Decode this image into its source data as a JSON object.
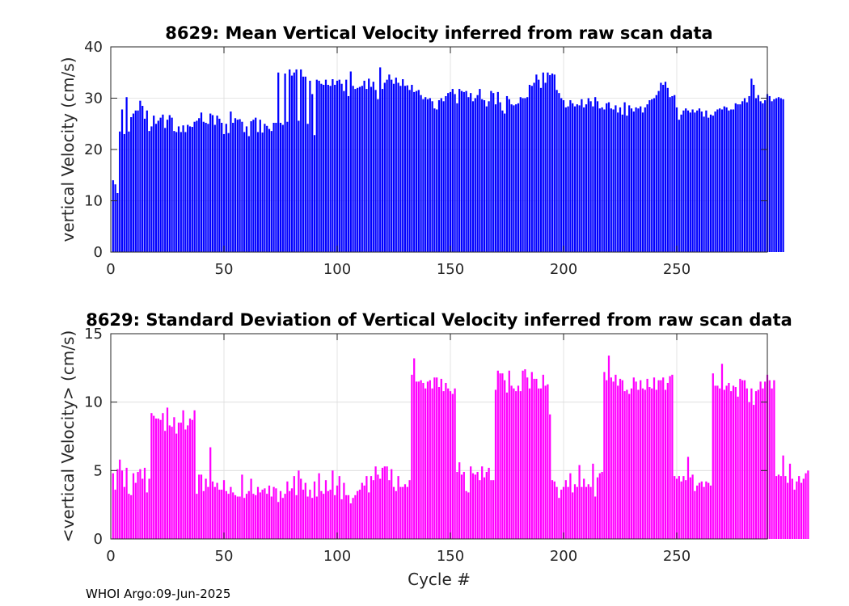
{
  "footer": {
    "credit": "WHOI Argo:09-Jun-2025"
  },
  "colors": {
    "mean_bars": "#0000ff",
    "std_bars": "#ff00ff",
    "grid": "#dcdcdc",
    "axis": "#262626"
  },
  "chart_data": [
    {
      "type": "bar",
      "title": "8629: Mean Vertical Velocity inferred from raw scan data",
      "xlabel": "",
      "ylabel": "vertical Velocity (cm/s)",
      "xlim": [
        0,
        290
      ],
      "ylim": [
        0,
        40
      ],
      "xticks": [
        0,
        50,
        100,
        150,
        200,
        250
      ],
      "yticks": [
        0,
        10,
        20,
        30,
        40
      ],
      "grid": true,
      "x_start": 1,
      "series": [
        {
          "name": "mean vertical velocity",
          "color": "#0000ff",
          "values": [
            14,
            13.2,
            11.5,
            23.5,
            27.8,
            23,
            30.2,
            23.5,
            26.3,
            27,
            27.6,
            27.6,
            29.5,
            28.5,
            26,
            27.6,
            23.6,
            24.5,
            26.6,
            25,
            25.6,
            26.2,
            26.8,
            24.2,
            25.8,
            26.7,
            26.2,
            23.6,
            23.4,
            24.5,
            23.4,
            24.7,
            23.4,
            24.8,
            24.5,
            24.4,
            25.4,
            25.6,
            26.1,
            27.2,
            25.4,
            25.2,
            25.0,
            27.0,
            26.7,
            24.8,
            26.6,
            26.0,
            25.2,
            23.0,
            25.0,
            23.2,
            27.4,
            25.2,
            26.1,
            25.8,
            25.9,
            25.4,
            23.4,
            24.5,
            22.6,
            25.5,
            25.8,
            26.2,
            23.4,
            25.8,
            23.3,
            25.0,
            24.6,
            24.0,
            23.6,
            25.2,
            25.2,
            35.0,
            25.2,
            24.8,
            34.8,
            25.4,
            35.6,
            34.4,
            35.0,
            35.6,
            25.6,
            35.6,
            34.2,
            34.2,
            25.0,
            33.4,
            30.8,
            22.8,
            33.6,
            33.4,
            32.8,
            32.6,
            33.6,
            32.6,
            32.4,
            33.7,
            32.6,
            33.4,
            33.6,
            32.8,
            31.4,
            33.6,
            30.4,
            35.2,
            32.4,
            31.8,
            32.0,
            32.2,
            32.4,
            33.4,
            31.8,
            33.8,
            32.2,
            33.2,
            31.6,
            29.8,
            36.0,
            31.8,
            33.0,
            33.6,
            34.6,
            33.6,
            32.8,
            34.0,
            33.0,
            32.4,
            33.7,
            32.4,
            32.5,
            31.6,
            32.6,
            31.2,
            31.4,
            31.6,
            30.6,
            29.8,
            30.2,
            29.8,
            30.0,
            29.4,
            28.0,
            27.8,
            29.6,
            30.0,
            29.4,
            30.4,
            31.0,
            31.2,
            31.8,
            30.8,
            29.0,
            31.8,
            31.4,
            31.2,
            31.4,
            30.2,
            31.0,
            29.4,
            30.0,
            30.6,
            31.8,
            29.8,
            29.6,
            28.4,
            29.4,
            31.4,
            31.0,
            28.8,
            31.2,
            29.2,
            27.6,
            27.0,
            30.4,
            29.8,
            28.8,
            28.6,
            28.8,
            29.0,
            30.2,
            30.0,
            30.0,
            30.2,
            32.6,
            32.4,
            33.0,
            34.6,
            33.6,
            32.0,
            35.0,
            33.0,
            35.0,
            34.5,
            34.8,
            34.6,
            31.6,
            31.0,
            30.0,
            29.6,
            28.2,
            28.4,
            29.6,
            29.0,
            28.4,
            28.8,
            28.6,
            29.8,
            28.2,
            28.8,
            30.0,
            29.4,
            28.4,
            30.2,
            29.4,
            28.0,
            28.2,
            27.8,
            29.0,
            29.2,
            28.0,
            27.8,
            28.6,
            27.2,
            28.2,
            26.8,
            29.2,
            26.6,
            28.6,
            28.0,
            27.4,
            28.2,
            28.0,
            28.4,
            27.2,
            28.2,
            28.8,
            29.6,
            29.8,
            30.0,
            30.6,
            31.4,
            33.0,
            32.6,
            33.2,
            32.0,
            30.2,
            30.4,
            30.6,
            28.2,
            25.8,
            26.8,
            27.6,
            28.0,
            27.6,
            27.2,
            27.8,
            27.2,
            27.6,
            28.0,
            27.4,
            26.4,
            27.6,
            26.2,
            26.8,
            26.6,
            27.4,
            27.8,
            28.0,
            27.8,
            28.4,
            28.2,
            27.6,
            27.8,
            27.8,
            29.0,
            28.8,
            28.8,
            29.4,
            30.0,
            29.2,
            30.4,
            33.8,
            32.6,
            30.0,
            30.6,
            29.4,
            29.0,
            29.6,
            30.8,
            30.4,
            29.4,
            29.8,
            30.0,
            30.2,
            30.0,
            29.8
          ]
        }
      ]
    },
    {
      "type": "bar",
      "title": "8629: Standard Deviation of Vertical Velocity inferred from raw scan data",
      "xlabel": "Cycle #",
      "ylabel": "<vertical Velocity> (cm/s)",
      "xlim": [
        0,
        290
      ],
      "ylim": [
        0,
        15
      ],
      "xticks": [
        0,
        50,
        100,
        150,
        200,
        250
      ],
      "yticks": [
        0,
        5,
        10,
        15
      ],
      "grid": true,
      "x_start": 1,
      "series": [
        {
          "name": "standard deviation of vertical velocity",
          "color": "#ff00ff",
          "values": [
            4.8,
            3.6,
            5.1,
            5.8,
            5.0,
            3.8,
            5.2,
            3.3,
            3.2,
            4.8,
            4.1,
            4.9,
            5.1,
            4.4,
            5.2,
            3.4,
            4.4,
            9.2,
            9.0,
            8.8,
            8.8,
            8.7,
            9.2,
            7.9,
            9.6,
            8.3,
            8.2,
            8.9,
            7.7,
            8.5,
            8.5,
            9.4,
            8.0,
            8.3,
            8.8,
            8.7,
            9.4,
            3.3,
            4.7,
            4.7,
            3.5,
            4.4,
            3.8,
            6.7,
            4.2,
            3.8,
            4.1,
            3.6,
            3.6,
            4.3,
            3.5,
            3.3,
            3.8,
            3.4,
            3.2,
            3.1,
            3.1,
            4.7,
            3.0,
            3.3,
            3.5,
            4.4,
            3.3,
            3.2,
            3.8,
            3.4,
            3.6,
            3.7,
            3.3,
            3.9,
            3.1,
            3.8,
            3.7,
            2.7,
            3.5,
            3.0,
            3.3,
            4.2,
            3.5,
            3.7,
            4.6,
            3.2,
            5.0,
            4.4,
            3.6,
            4.1,
            3.1,
            3.6,
            3.0,
            4.2,
            3.1,
            4.8,
            3.5,
            3.3,
            4.3,
            3.5,
            3.6,
            5.0,
            3.2,
            3.9,
            4.6,
            2.9,
            4.1,
            3.2,
            3.2,
            2.6,
            3.0,
            3.2,
            3.5,
            3.6,
            4.1,
            3.9,
            4.6,
            3.4,
            4.6,
            4.3,
            5.3,
            4.7,
            4.4,
            5.2,
            5.3,
            5.3,
            4.3,
            5.1,
            3.8,
            3.5,
            4.6,
            3.8,
            3.8,
            4.0,
            3.8,
            4.3,
            12.0,
            13.2,
            11.5,
            11.5,
            11.6,
            11.4,
            11.0,
            11.5,
            11.6,
            11.0,
            11.8,
            11.8,
            11.1,
            11.7,
            10.8,
            11.4,
            11.0,
            10.8,
            10.6,
            11.0,
            4.9,
            5.6,
            4.7,
            4.9,
            3.5,
            3.4,
            5.3,
            4.8,
            4.7,
            4.9,
            4.3,
            5.3,
            4.5,
            4.9,
            5.2,
            4.3,
            4.3,
            10.9,
            12.3,
            12.1,
            12.1,
            11.6,
            10.7,
            12.3,
            11.2,
            11.0,
            10.8,
            11.2,
            10.8,
            12.3,
            12.4,
            11.8,
            11.0,
            12.2,
            11.7,
            11.7,
            11.0,
            11.0,
            12.0,
            11.2,
            11.3,
            9.1,
            4.3,
            4.2,
            3.8,
            3.0,
            3.6,
            3.8,
            4.3,
            3.8,
            4.8,
            3.4,
            4.0,
            3.8,
            5.4,
            3.8,
            4.4,
            3.8,
            4.0,
            3.8,
            5.5,
            3.1,
            4.5,
            4.8,
            4.9,
            12.2,
            11.6,
            13.4,
            11.8,
            11.5,
            12.0,
            11.2,
            11.7,
            11.6,
            10.8,
            10.9,
            10.6,
            11.0,
            11.8,
            11.5,
            10.9,
            11.6,
            11.0,
            10.9,
            11.7,
            11.1,
            11.0,
            11.8,
            10.9,
            11.6,
            11.6,
            11.8,
            10.9,
            11.4,
            11.9,
            12.0,
            4.6,
            4.4,
            4.6,
            4.2,
            4.6,
            4.3,
            6.0,
            4.5,
            4.7,
            3.5,
            3.9,
            4.1,
            4.2,
            3.8,
            4.2,
            4.1,
            3.9,
            12.1,
            11.2,
            11.2,
            11.0,
            12.8,
            10.9,
            11.2,
            11.4,
            10.8,
            11.2,
            11.1,
            10.4,
            11.7,
            11.6,
            11.6,
            11.0,
            10.0,
            11.0,
            9.8,
            10.8,
            10.9,
            11.5,
            11.0,
            11.5,
            12.0,
            11.6,
            11.0,
            11.6,
            4.6,
            4.7,
            4.6,
            6.1,
            4.6,
            4.1,
            5.5,
            4.4,
            3.6,
            4.2,
            4.6,
            4.1,
            4.4,
            4.8,
            5.0
          ]
        }
      ]
    }
  ]
}
